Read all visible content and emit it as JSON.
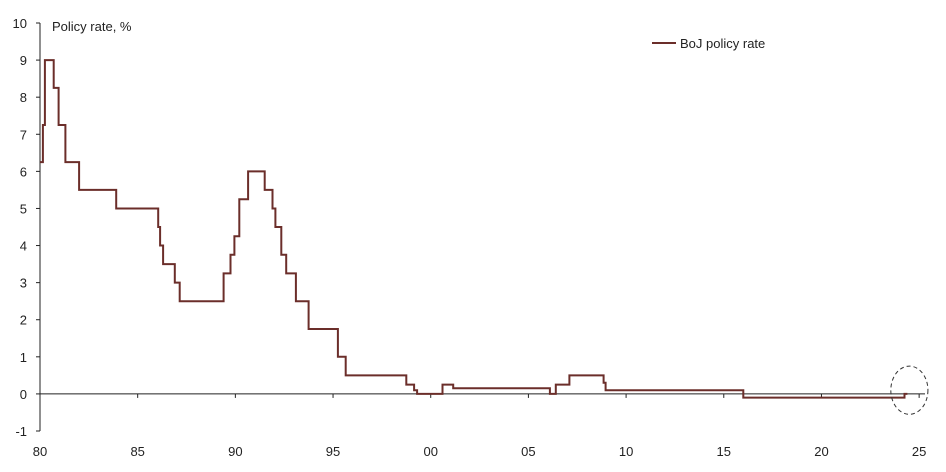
{
  "chart_data": {
    "type": "line",
    "title": "",
    "ylabel": "Policy rate, %",
    "xlabel": "",
    "xlim": [
      1980,
      2025.5
    ],
    "ylim": [
      -1,
      10
    ],
    "x_ticks": [
      {
        "value": 1980,
        "label": "80"
      },
      {
        "value": 1985,
        "label": "85"
      },
      {
        "value": 1990,
        "label": "90"
      },
      {
        "value": 1995,
        "label": "95"
      },
      {
        "value": 2000,
        "label": "00"
      },
      {
        "value": 2005,
        "label": "05"
      },
      {
        "value": 2010,
        "label": "10"
      },
      {
        "value": 2015,
        "label": "15"
      },
      {
        "value": 2020,
        "label": "20"
      },
      {
        "value": 2025,
        "label": "25"
      }
    ],
    "y_ticks": [
      {
        "value": 10,
        "label": "10"
      },
      {
        "value": 9,
        "label": "9"
      },
      {
        "value": 8,
        "label": "8"
      },
      {
        "value": 7,
        "label": "7"
      },
      {
        "value": 6,
        "label": "6"
      },
      {
        "value": 5,
        "label": "5"
      },
      {
        "value": 4,
        "label": "4"
      },
      {
        "value": 3,
        "label": "3"
      },
      {
        "value": 2,
        "label": "2"
      },
      {
        "value": 1,
        "label": "1"
      },
      {
        "value": 0,
        "label": "0"
      },
      {
        "value": -1,
        "label": "-1"
      }
    ],
    "grid": false,
    "legend_position": "top-right",
    "step": true,
    "series": [
      {
        "name": "BoJ policy rate",
        "color": "#6b2e2a",
        "points": [
          [
            1980.0,
            6.25
          ],
          [
            1980.15,
            7.25
          ],
          [
            1980.25,
            9.0
          ],
          [
            1980.7,
            8.25
          ],
          [
            1980.95,
            7.25
          ],
          [
            1981.3,
            6.25
          ],
          [
            1982.0,
            5.5
          ],
          [
            1983.9,
            5.0
          ],
          [
            1986.05,
            4.5
          ],
          [
            1986.15,
            4.0
          ],
          [
            1986.3,
            3.5
          ],
          [
            1986.9,
            3.0
          ],
          [
            1987.15,
            2.5
          ],
          [
            1989.4,
            3.25
          ],
          [
            1989.75,
            3.75
          ],
          [
            1989.95,
            4.25
          ],
          [
            1990.2,
            5.25
          ],
          [
            1990.65,
            6.0
          ],
          [
            1991.5,
            5.5
          ],
          [
            1991.9,
            5.0
          ],
          [
            1992.05,
            4.5
          ],
          [
            1992.35,
            3.75
          ],
          [
            1992.6,
            3.25
          ],
          [
            1993.1,
            2.5
          ],
          [
            1993.75,
            1.75
          ],
          [
            1995.25,
            1.0
          ],
          [
            1995.65,
            0.5
          ],
          [
            1998.75,
            0.25
          ],
          [
            1999.15,
            0.1
          ],
          [
            1999.3,
            0.0
          ],
          [
            2000.6,
            0.25
          ],
          [
            2001.15,
            0.15
          ],
          [
            2006.1,
            0.0
          ],
          [
            2006.4,
            0.25
          ],
          [
            2007.1,
            0.5
          ],
          [
            2008.85,
            0.3
          ],
          [
            2008.95,
            0.1
          ],
          [
            2016.0,
            -0.1
          ],
          [
            2024.25,
            0.0
          ],
          [
            2024.4,
            0.0
          ]
        ]
      }
    ],
    "annotations": [
      {
        "type": "dashed-ellipse",
        "center": [
          2024.5,
          0.1
        ],
        "radius_x": 0.95,
        "radius_y": 0.65,
        "color": "#333333"
      }
    ]
  }
}
